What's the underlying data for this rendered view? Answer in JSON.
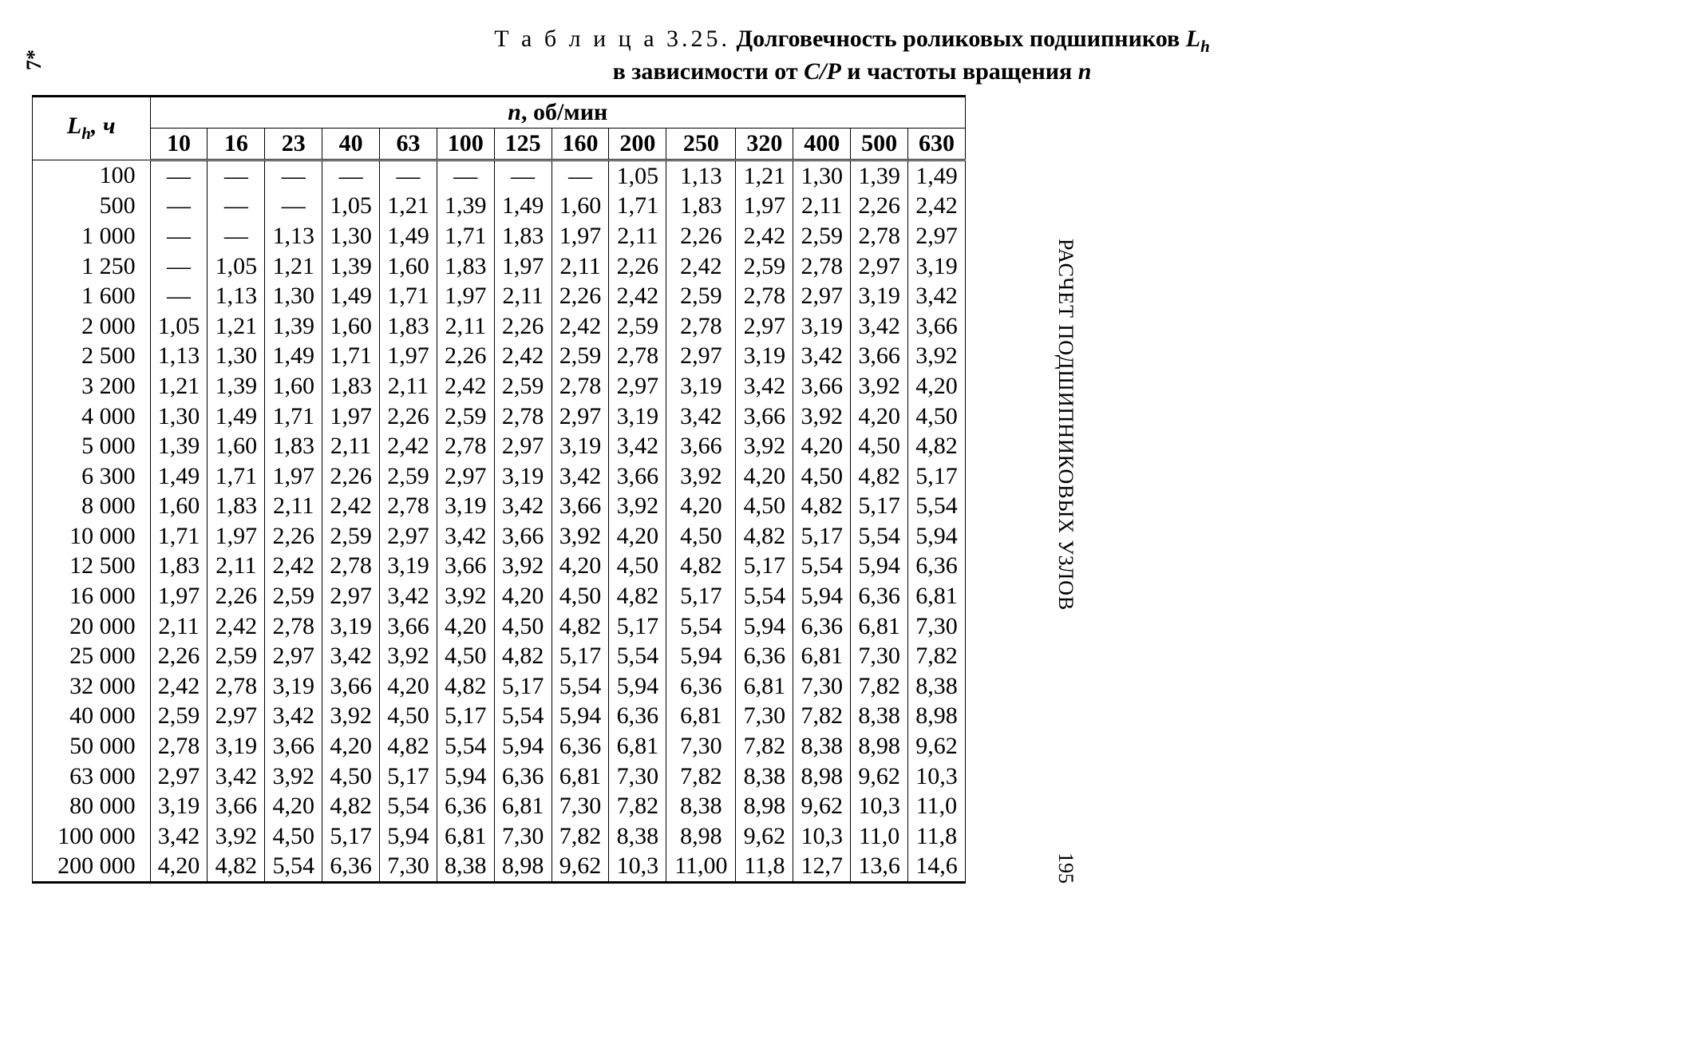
{
  "left_marker": "7*",
  "title": {
    "label": "Т а б л и ц а  3.25.",
    "main": "Долговечность роликовых подшипников",
    "symbol_main": "L",
    "symbol_sub": "h",
    "line2_prefix": "в зависимости от ",
    "ratio": "C/P",
    "line2_suffix": " и частоты вращения ",
    "n": "n"
  },
  "side_caption": "РАСЧЕТ  ПОДШИПНИКОВЫХ  УЗЛОВ",
  "page_number": "195",
  "table": {
    "row_header_html": "L<sub>h</sub>, ч",
    "group_header_html": "<i>n</i>, об/мин",
    "columns": [
      "10",
      "16",
      "23",
      "40",
      "63",
      "100",
      "125",
      "160",
      "200",
      "250",
      "320",
      "400",
      "500",
      "630"
    ],
    "row_labels": [
      "100",
      "500",
      "1 000",
      "1 250",
      "1 600",
      "2 000",
      "2 500",
      "3 200",
      "4 000",
      "5 000",
      "6 300",
      "8 000",
      "10 000",
      "12 500",
      "16 000",
      "20 000",
      "25 000",
      "32 000",
      "40 000",
      "50 000",
      "63 000",
      "80 000",
      "100 000",
      "200 000"
    ],
    "rows": [
      [
        "—",
        "—",
        "—",
        "—",
        "—",
        "—",
        "—",
        "—",
        "1,05",
        "1,13",
        "1,21",
        "1,30",
        "1,39",
        "1,49"
      ],
      [
        "—",
        "—",
        "—",
        "1,05",
        "1,21",
        "1,39",
        "1,49",
        "1,60",
        "1,71",
        "1,83",
        "1,97",
        "2,11",
        "2,26",
        "2,42"
      ],
      [
        "—",
        "—",
        "1,13",
        "1,30",
        "1,49",
        "1,71",
        "1,83",
        "1,97",
        "2,11",
        "2,26",
        "2,42",
        "2,59",
        "2,78",
        "2,97"
      ],
      [
        "—",
        "1,05",
        "1,21",
        "1,39",
        "1,60",
        "1,83",
        "1,97",
        "2,11",
        "2,26",
        "2,42",
        "2,59",
        "2,78",
        "2,97",
        "3,19"
      ],
      [
        "—",
        "1,13",
        "1,30",
        "1,49",
        "1,71",
        "1,97",
        "2,11",
        "2,26",
        "2,42",
        "2,59",
        "2,78",
        "2,97",
        "3,19",
        "3,42"
      ],
      [
        "1,05",
        "1,21",
        "1,39",
        "1,60",
        "1,83",
        "2,11",
        "2,26",
        "2,42",
        "2,59",
        "2,78",
        "2,97",
        "3,19",
        "3,42",
        "3,66"
      ],
      [
        "1,13",
        "1,30",
        "1,49",
        "1,71",
        "1,97",
        "2,26",
        "2,42",
        "2,59",
        "2,78",
        "2,97",
        "3,19",
        "3,42",
        "3,66",
        "3,92"
      ],
      [
        "1,21",
        "1,39",
        "1,60",
        "1,83",
        "2,11",
        "2,42",
        "2,59",
        "2,78",
        "2,97",
        "3,19",
        "3,42",
        "3,66",
        "3,92",
        "4,20"
      ],
      [
        "1,30",
        "1,49",
        "1,71",
        "1,97",
        "2,26",
        "2,59",
        "2,78",
        "2,97",
        "3,19",
        "3,42",
        "3,66",
        "3,92",
        "4,20",
        "4,50"
      ],
      [
        "1,39",
        "1,60",
        "1,83",
        "2,11",
        "2,42",
        "2,78",
        "2,97",
        "3,19",
        "3,42",
        "3,66",
        "3,92",
        "4,20",
        "4,50",
        "4,82"
      ],
      [
        "1,49",
        "1,71",
        "1,97",
        "2,26",
        "2,59",
        "2,97",
        "3,19",
        "3,42",
        "3,66",
        "3,92",
        "4,20",
        "4,50",
        "4,82",
        "5,17"
      ],
      [
        "1,60",
        "1,83",
        "2,11",
        "2,42",
        "2,78",
        "3,19",
        "3,42",
        "3,66",
        "3,92",
        "4,20",
        "4,50",
        "4,82",
        "5,17",
        "5,54"
      ],
      [
        "1,71",
        "1,97",
        "2,26",
        "2,59",
        "2,97",
        "3,42",
        "3,66",
        "3,92",
        "4,20",
        "4,50",
        "4,82",
        "5,17",
        "5,54",
        "5,94"
      ],
      [
        "1,83",
        "2,11",
        "2,42",
        "2,78",
        "3,19",
        "3,66",
        "3,92",
        "4,20",
        "4,50",
        "4,82",
        "5,17",
        "5,54",
        "5,94",
        "6,36"
      ],
      [
        "1,97",
        "2,26",
        "2,59",
        "2,97",
        "3,42",
        "3,92",
        "4,20",
        "4,50",
        "4,82",
        "5,17",
        "5,54",
        "5,94",
        "6,36",
        "6,81"
      ],
      [
        "2,11",
        "2,42",
        "2,78",
        "3,19",
        "3,66",
        "4,20",
        "4,50",
        "4,82",
        "5,17",
        "5,54",
        "5,94",
        "6,36",
        "6,81",
        "7,30"
      ],
      [
        "2,26",
        "2,59",
        "2,97",
        "3,42",
        "3,92",
        "4,50",
        "4,82",
        "5,17",
        "5,54",
        "5,94",
        "6,36",
        "6,81",
        "7,30",
        "7,82"
      ],
      [
        "2,42",
        "2,78",
        "3,19",
        "3,66",
        "4,20",
        "4,82",
        "5,17",
        "5,54",
        "5,94",
        "6,36",
        "6,81",
        "7,30",
        "7,82",
        "8,38"
      ],
      [
        "2,59",
        "2,97",
        "3,42",
        "3,92",
        "4,50",
        "5,17",
        "5,54",
        "5,94",
        "6,36",
        "6,81",
        "7,30",
        "7,82",
        "8,38",
        "8,98"
      ],
      [
        "2,78",
        "3,19",
        "3,66",
        "4,20",
        "4,82",
        "5,54",
        "5,94",
        "6,36",
        "6,81",
        "7,30",
        "7,82",
        "8,38",
        "8,98",
        "9,62"
      ],
      [
        "2,97",
        "3,42",
        "3,92",
        "4,50",
        "5,17",
        "5,94",
        "6,36",
        "6,81",
        "7,30",
        "7,82",
        "8,38",
        "8,98",
        "9,62",
        "10,3"
      ],
      [
        "3,19",
        "3,66",
        "4,20",
        "4,82",
        "5,54",
        "6,36",
        "6,81",
        "7,30",
        "7,82",
        "8,38",
        "8,98",
        "9,62",
        "10,3",
        "11,0"
      ],
      [
        "3,42",
        "3,92",
        "4,50",
        "5,17",
        "5,94",
        "6,81",
        "7,30",
        "7,82",
        "8,38",
        "8,98",
        "9,62",
        "10,3",
        "11,0",
        "11,8"
      ],
      [
        "4,20",
        "4,82",
        "5,54",
        "6,36",
        "7,30",
        "8,38",
        "8,98",
        "9,62",
        "10,3",
        "11,00",
        "11,8",
        "12,7",
        "13,6",
        "14,6"
      ]
    ]
  }
}
